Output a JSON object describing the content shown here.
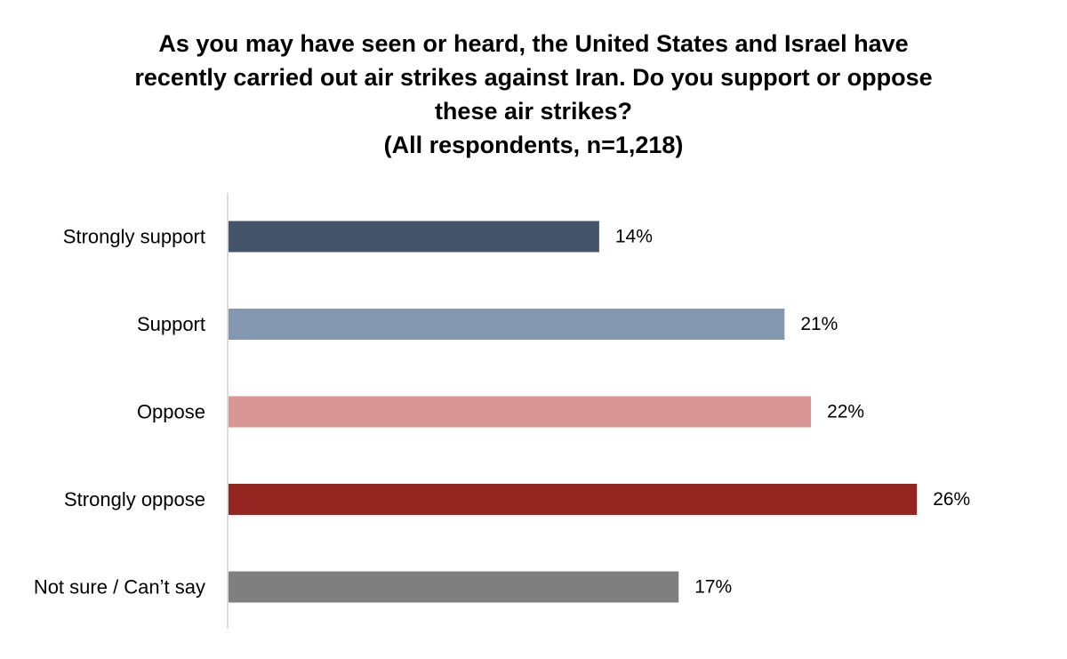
{
  "chart_data": {
    "type": "bar",
    "orientation": "horizontal",
    "title_lines": [
      "As you may have seen or heard, the United States and Israel have",
      "recently carried out air strikes against Iran. Do you support or oppose",
      "these air strikes?",
      "(All respondents, n=1,218)"
    ],
    "categories": [
      "Strongly support",
      "Support",
      "Oppose",
      "Strongly oppose",
      "Not sure / Can’t say"
    ],
    "values": [
      14,
      21,
      22,
      26,
      17
    ],
    "value_labels": [
      "14%",
      "21%",
      "22%",
      "26%",
      "17%"
    ],
    "unit": "%",
    "colors": [
      "#44546a",
      "#8497b0",
      "#da9694",
      "#952521",
      "#7f7f7f"
    ],
    "xlim": [
      0,
      26.9
    ],
    "grid": false,
    "legend": "none",
    "axis_line_color": "#d0d0d0"
  }
}
